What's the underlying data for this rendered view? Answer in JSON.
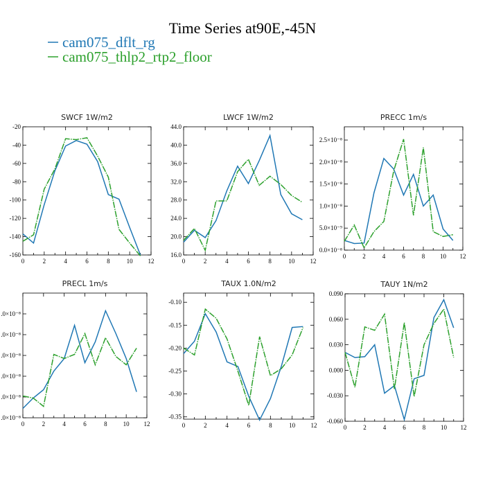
{
  "figure": {
    "title": "Time Series at90E,-45N",
    "legend": [
      {
        "label": "cam075_dflt_rg",
        "color": "#1f77b4"
      },
      {
        "label": "cam075_thlp2_rtp2_floor",
        "color": "#2ca02c"
      }
    ]
  },
  "chart_data": [
    {
      "type": "line",
      "title": "SWCF  1W/m2",
      "x": [
        0,
        1,
        2,
        3,
        4,
        5,
        6,
        7,
        8,
        9,
        10,
        11
      ],
      "xlim": [
        0,
        12
      ],
      "x_ticks": [
        "0",
        "2",
        "4",
        "6",
        "8",
        "10",
        "12"
      ],
      "ylim": [
        -160,
        -20
      ],
      "y_ticks": [
        "-160",
        "-140",
        "-120",
        "-100",
        "-80",
        "-60",
        "-40",
        "-20"
      ],
      "series": [
        {
          "name": "cam075_dflt_rg",
          "color": "#1f77b4",
          "dashed": false,
          "values": [
            -137,
            -147,
            -105,
            -68,
            -41,
            -35,
            -39,
            -58,
            -94,
            -99,
            -130,
            -160
          ]
        },
        {
          "name": "cam075_thlp2_rtp2_floor",
          "color": "#2ca02c",
          "dashed": true,
          "values": [
            -145,
            -138,
            -88,
            -66,
            -33,
            -34,
            -32,
            -52,
            -75,
            -132,
            -147,
            -161
          ]
        }
      ]
    },
    {
      "type": "line",
      "title": "LWCF  1W/m2",
      "x": [
        0,
        1,
        2,
        3,
        4,
        5,
        6,
        7,
        8,
        9,
        10,
        11
      ],
      "xlim": [
        0,
        12
      ],
      "x_ticks": [
        "0",
        "2",
        "4",
        "6",
        "8",
        "10",
        "12"
      ],
      "ylim": [
        16,
        44
      ],
      "y_ticks": [
        "16.0",
        "20.0",
        "24.0",
        "28.0",
        "32.0",
        "36.0",
        "40.0",
        "44.0"
      ],
      "series": [
        {
          "name": "cam075_dflt_rg",
          "color": "#1f77b4",
          "dashed": false,
          "values": [
            18.8,
            21.4,
            19.8,
            23.5,
            30.0,
            35.4,
            31.6,
            36.6,
            42.1,
            29.2,
            25.0,
            23.7
          ]
        },
        {
          "name": "cam075_thlp2_rtp2_floor",
          "color": "#2ca02c",
          "dashed": true,
          "values": [
            19.2,
            21.8,
            17.0,
            27.8,
            27.8,
            34.2,
            36.9,
            31.2,
            33.2,
            31.4,
            29.0,
            27.5
          ]
        }
      ]
    },
    {
      "type": "line",
      "title": "PRECC  1m/s",
      "x": [
        0,
        1,
        2,
        3,
        4,
        5,
        6,
        7,
        8,
        9,
        10,
        11
      ],
      "xlim": [
        0,
        12
      ],
      "x_ticks": [
        "0",
        "2",
        "4",
        "6",
        "8",
        "10",
        "12"
      ],
      "ylim": [
        0,
        2.8
      ],
      "y_ticks": [
        "0.0×10⁻⁸",
        "5.0×10⁻⁹",
        "1.0×10⁻⁸",
        "1.5×10⁻⁸",
        "2.0×10⁻⁸",
        "2.5×10⁻⁸"
      ],
      "y_tick_values": [
        0,
        0.5,
        1.0,
        1.5,
        2.0,
        2.5
      ],
      "series": [
        {
          "name": "cam075_dflt_rg",
          "color": "#1f77b4",
          "dashed": false,
          "values": [
            0.22,
            0.15,
            0.16,
            1.3,
            2.08,
            1.84,
            1.25,
            1.72,
            1.0,
            1.25,
            0.48,
            0.22
          ]
        },
        {
          "name": "cam075_thlp2_rtp2_floor",
          "color": "#2ca02c",
          "dashed": true,
          "values": [
            0.2,
            0.57,
            0.05,
            0.42,
            0.65,
            1.8,
            2.52,
            0.79,
            2.33,
            0.42,
            0.31,
            0.35
          ]
        }
      ]
    },
    {
      "type": "line",
      "title": "PRECL  1m/s",
      "x": [
        0,
        1,
        2,
        3,
        4,
        5,
        6,
        7,
        8,
        9,
        10,
        11
      ],
      "xlim": [
        0,
        12
      ],
      "x_ticks": [
        "0",
        "2",
        "4",
        "6",
        "8",
        "10",
        "12"
      ],
      "ylim": [
        0,
        6
      ],
      "y_ticks": [
        ".0×10⁻⁸",
        ".0×10⁻⁸",
        ".0×10⁻⁸",
        ".0×10⁻⁸",
        ".0×10⁻⁸",
        ".0×10⁻⁸"
      ],
      "y_tick_values": [
        0,
        1,
        2,
        3,
        4,
        5
      ],
      "series": [
        {
          "name": "cam075_dflt_rg",
          "color": "#1f77b4",
          "dashed": false,
          "values": [
            0.45,
            0.95,
            1.35,
            2.25,
            2.85,
            4.45,
            2.65,
            3.65,
            5.15,
            4.05,
            2.85,
            1.25
          ]
        },
        {
          "name": "cam075_thlp2_rtp2_floor",
          "color": "#2ca02c",
          "dashed": true,
          "values": [
            1.05,
            0.95,
            0.55,
            3.05,
            2.85,
            3.05,
            4.05,
            2.55,
            3.85,
            2.95,
            2.55,
            3.35
          ]
        }
      ]
    },
    {
      "type": "line",
      "title": "TAUX  1.0N/m2",
      "x": [
        0,
        1,
        2,
        3,
        4,
        5,
        6,
        7,
        8,
        9,
        10,
        11
      ],
      "xlim": [
        0,
        12
      ],
      "x_ticks": [
        "0",
        "2",
        "4",
        "6",
        "8",
        "10",
        "12"
      ],
      "ylim": [
        -0.355,
        -0.08
      ],
      "y_ticks": [
        "-0.35",
        "-0.30",
        "-0.25",
        "-0.20",
        "-0.15",
        "-0.10"
      ],
      "y_tick_values": [
        -0.35,
        -0.3,
        -0.25,
        -0.2,
        -0.15,
        -0.1
      ],
      "series": [
        {
          "name": "cam075_dflt_rg",
          "color": "#1f77b4",
          "dashed": false,
          "values": [
            -0.212,
            -0.185,
            -0.125,
            -0.165,
            -0.23,
            -0.24,
            -0.305,
            -0.357,
            -0.31,
            -0.24,
            -0.155,
            -0.153
          ]
        },
        {
          "name": "cam075_thlp2_rtp2_floor",
          "color": "#2ca02c",
          "dashed": true,
          "values": [
            -0.2,
            -0.215,
            -0.115,
            -0.135,
            -0.18,
            -0.25,
            -0.325,
            -0.175,
            -0.26,
            -0.245,
            -0.215,
            -0.155
          ]
        }
      ]
    },
    {
      "type": "line",
      "title": "TAUY  1N/m2",
      "x": [
        0,
        1,
        2,
        3,
        4,
        5,
        6,
        7,
        8,
        9,
        10,
        11
      ],
      "xlim": [
        0,
        12
      ],
      "x_ticks": [
        "0",
        "2",
        "4",
        "6",
        "8",
        "10",
        "12"
      ],
      "ylim": [
        -0.06,
        0.09
      ],
      "y_ticks": [
        "-0.060",
        "-0.030",
        "0.000",
        "0.030",
        "0.060",
        "0.090"
      ],
      "y_tick_values": [
        -0.06,
        -0.03,
        0.0,
        0.03,
        0.06,
        0.09
      ],
      "series": [
        {
          "name": "cam075_dflt_rg",
          "color": "#1f77b4",
          "dashed": false,
          "values": [
            0.021,
            0.015,
            0.016,
            0.03,
            -0.027,
            -0.018,
            -0.058,
            -0.01,
            -0.006,
            0.062,
            0.083,
            0.05
          ]
        },
        {
          "name": "cam075_thlp2_rtp2_floor",
          "color": "#2ca02c",
          "dashed": true,
          "values": [
            0.021,
            -0.02,
            0.051,
            0.047,
            0.066,
            -0.022,
            0.056,
            -0.031,
            0.03,
            0.055,
            0.072,
            0.015
          ]
        }
      ]
    }
  ]
}
